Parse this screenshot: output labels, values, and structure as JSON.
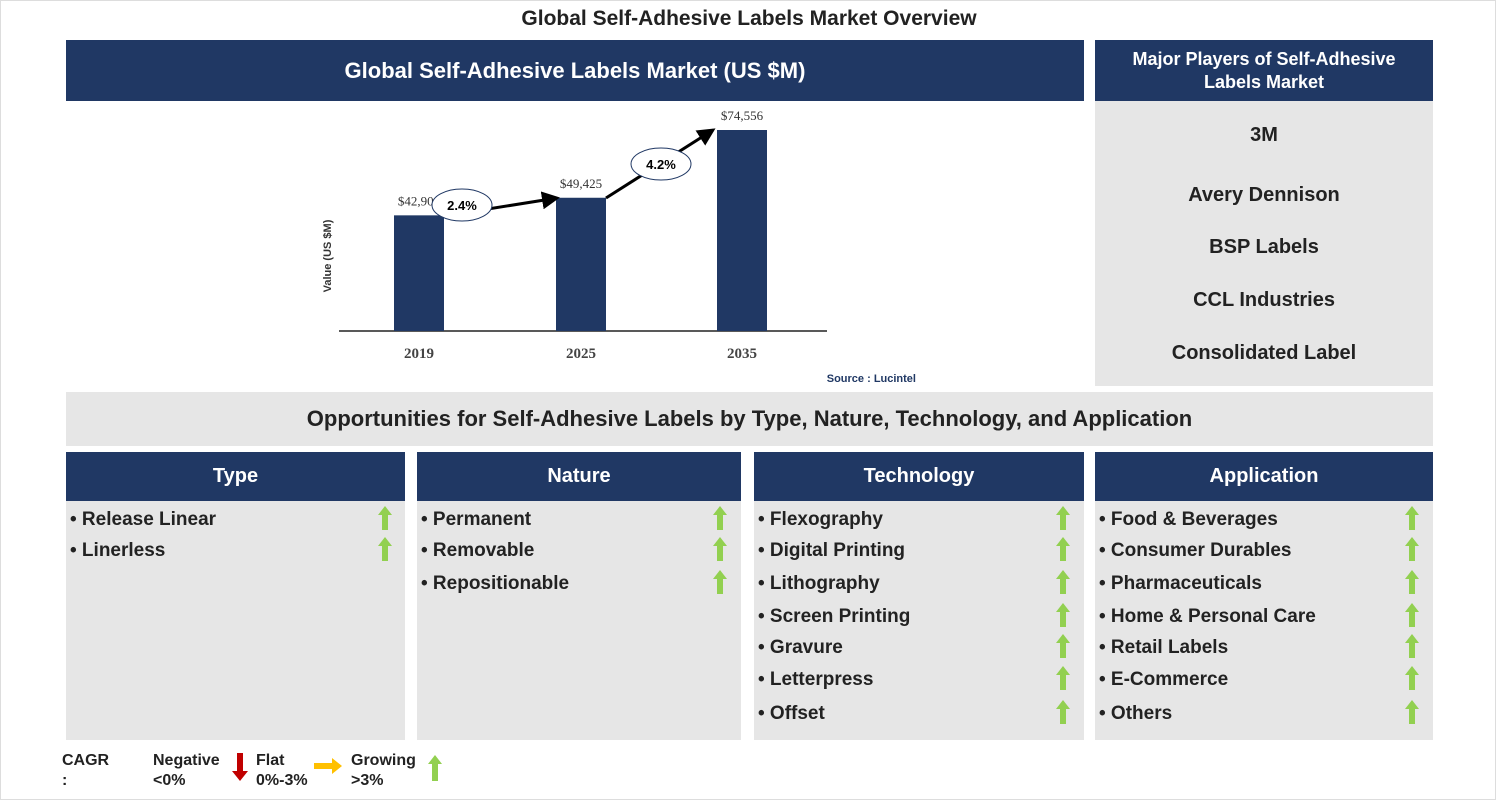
{
  "title": "Global Self-Adhesive Labels Market Overview",
  "chart_panel_title": "Global Self-Adhesive Labels Market (US $M)",
  "chart_data": {
    "type": "bar",
    "categories": [
      "2019",
      "2025",
      "2035"
    ],
    "values": [
      42901,
      49425,
      74556
    ],
    "value_labels": [
      "$42,901",
      "$49,425",
      "$74,556"
    ],
    "ylabel": "Value (US $M)",
    "cagr_annotations": [
      {
        "from": "2019",
        "to": "2025",
        "label": "2.4%"
      },
      {
        "from": "2025",
        "to": "2035",
        "label": "4.2%"
      }
    ],
    "bar_color": "#203864",
    "source": "Source : Lucintel"
  },
  "players": {
    "title": "Major Players of Self-Adhesive Labels Market",
    "items": [
      "3M",
      "Avery Dennison",
      "BSP Labels",
      "CCL Industries",
      "Consolidated Label"
    ]
  },
  "opportunities_title": "Opportunities for Self-Adhesive Labels by Type, Nature, Technology, and Application",
  "segments": [
    {
      "title": "Type",
      "items": [
        "• Release Linear",
        "• Linerless"
      ]
    },
    {
      "title": "Nature",
      "items": [
        "• Permanent",
        "• Removable",
        "• Repositionable"
      ]
    },
    {
      "title": "Technology",
      "items": [
        "• Flexography",
        "• Digital Printing",
        "• Lithography",
        "• Screen Printing",
        "• Gravure",
        "• Letterpress",
        "• Offset"
      ]
    },
    {
      "title": "Application",
      "items": [
        "• Food & Beverages",
        "• Consumer Durables",
        "• Pharmaceuticals",
        "• Home & Personal Care",
        "• Retail Labels",
        "• E-Commerce",
        "• Others"
      ]
    }
  ],
  "legend": {
    "label": "CAGR :",
    "negative": [
      "Negative",
      "<0%"
    ],
    "flat": [
      "Flat",
      "0%-3%"
    ],
    "growing": [
      "Growing",
      ">3%"
    ],
    "colors": {
      "negative": "#c00000",
      "flat": "#ffc000",
      "growing": "#92d050"
    }
  }
}
